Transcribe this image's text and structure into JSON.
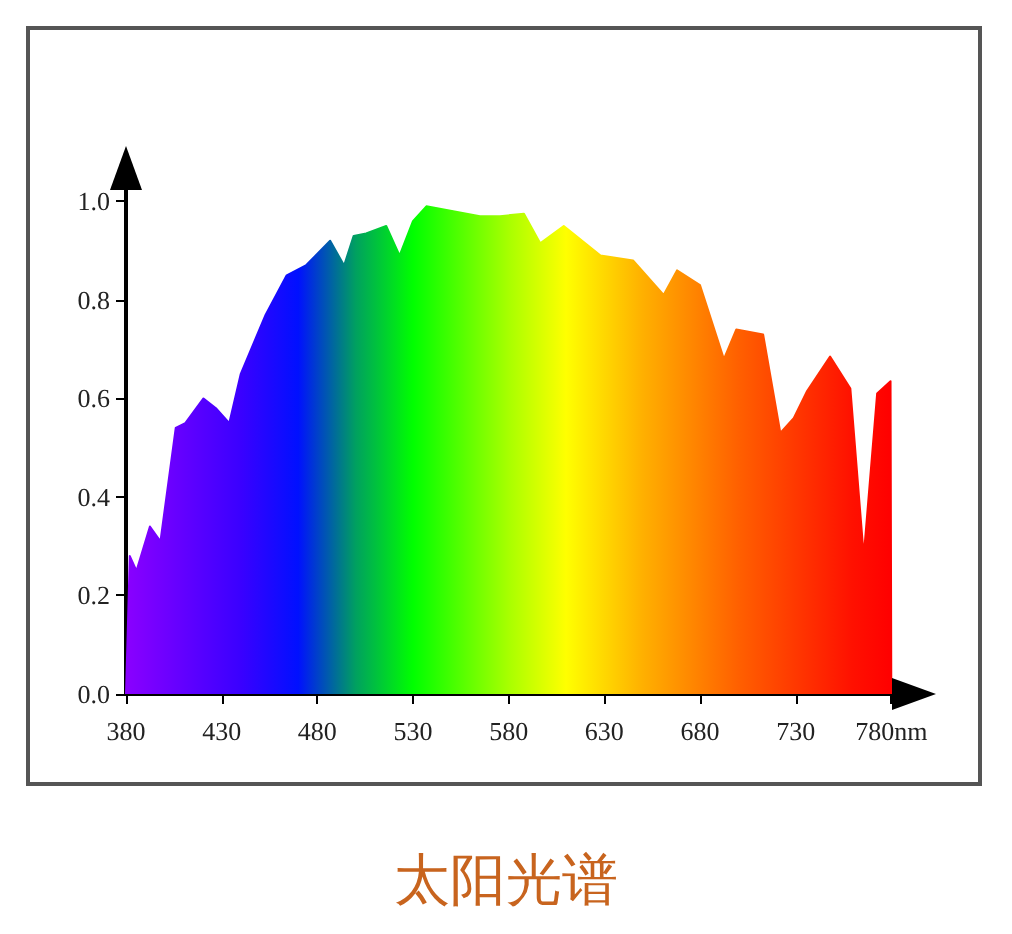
{
  "chart_data": {
    "type": "area",
    "title": "太阳光谱",
    "x": [
      380,
      382,
      385.5,
      392.5,
      398,
      406,
      411,
      420.5,
      427,
      434,
      440,
      453,
      464,
      474,
      486.7,
      494,
      499,
      505.5,
      516,
      523,
      530,
      537,
      551,
      565,
      575.5,
      588,
      596.5,
      608.8,
      628,
      645,
      661,
      668,
      680,
      692.5,
      699,
      713,
      722,
      729,
      736,
      748,
      758.6,
      765.6,
      772.6,
      779.6,
      780
    ],
    "values": [
      0,
      0.28,
      0.25,
      0.34,
      0.31,
      0.54,
      0.55,
      0.6,
      0.58,
      0.55,
      0.65,
      0.77,
      0.85,
      0.87,
      0.92,
      0.87,
      0.93,
      0.935,
      0.95,
      0.89,
      0.96,
      0.99,
      0.98,
      0.97,
      0.97,
      0.975,
      0.915,
      0.95,
      0.89,
      0.88,
      0.81,
      0.86,
      0.83,
      0.68,
      0.74,
      0.73,
      0.53,
      0.56,
      0.615,
      0.685,
      0.62,
      0.28,
      0.61,
      0.635,
      0
    ],
    "xlim": [
      380,
      795
    ],
    "ylim": [
      0,
      1.08
    ],
    "xticks": [
      380,
      430,
      480,
      530,
      580,
      630,
      680,
      730,
      {
        "value": 780,
        "label": "780nm"
      }
    ],
    "yticks": [
      {
        "value": 0,
        "label": "0.0"
      },
      {
        "value": 0.2,
        "label": "0.2"
      },
      {
        "value": 0.4,
        "label": "0.4"
      },
      {
        "value": 0.6,
        "label": "0.6"
      },
      {
        "value": 0.8,
        "label": "0.8"
      },
      {
        "value": 1,
        "label": "1.0"
      }
    ],
    "grid": false
  }
}
